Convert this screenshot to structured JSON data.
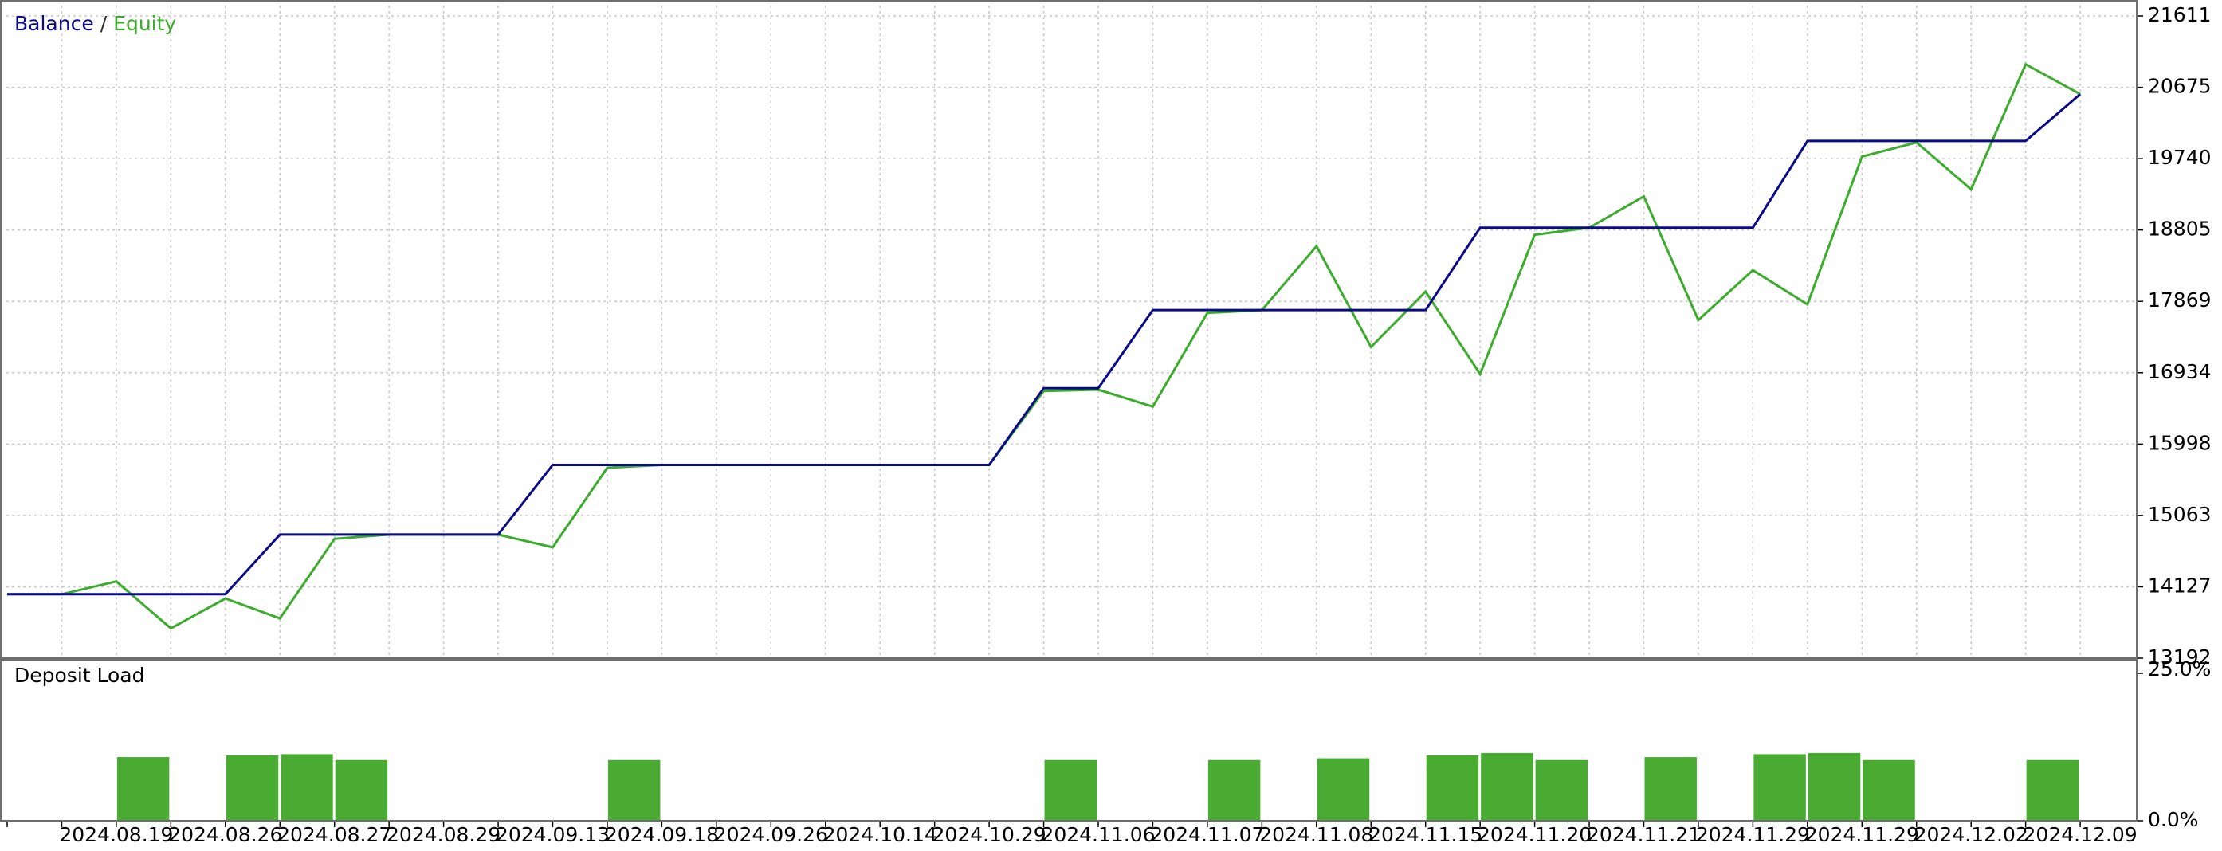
{
  "chart_data": [
    {
      "type": "line",
      "series": [
        {
          "name": "Balance",
          "color": "#0a0a8c",
          "values": [
            14030,
            14030,
            14030,
            14030,
            14030,
            14812,
            14812,
            14812,
            14812,
            14812,
            15725,
            15725,
            15725,
            15725,
            15725,
            15725,
            15725,
            15725,
            15725,
            16731,
            16731,
            17755,
            17755,
            17755,
            17755,
            17755,
            17755,
            18835,
            18835,
            18835,
            18835,
            18835,
            18835,
            19972,
            19972,
            19972,
            19972,
            19972,
            20586
          ]
        },
        {
          "name": "Equity",
          "color": "#3cac2c",
          "values": [
            14030,
            14030,
            14198,
            13583,
            13974,
            13714,
            14756,
            14812,
            14812,
            14812,
            14645,
            15688,
            15725,
            15725,
            15725,
            15725,
            15725,
            15725,
            15725,
            16694,
            16712,
            16489,
            17718,
            17755,
            18593,
            17271,
            17997,
            16917,
            18742,
            18835,
            19245,
            17625,
            18277,
            17830,
            19767,
            19953,
            19338,
            20977,
            20586
          ]
        }
      ],
      "legend_separator": "/",
      "ylim": [
        13192,
        21611
      ],
      "yticks": [
        13192,
        14127,
        15063,
        15998,
        16934,
        17869,
        18805,
        19740,
        20675,
        21611
      ],
      "grid": true
    },
    {
      "type": "bar",
      "title": "Deposit Load",
      "categories": [
        null,
        null,
        "2024.08.19",
        null,
        "2024.08.26",
        null,
        "2024.08.27",
        null,
        "2024.08.29",
        null,
        "2024.09.13",
        null,
        "2024.09.18",
        null,
        "2024.09.26",
        null,
        "2024.10.14",
        null,
        "2024.10.29",
        null,
        "2024.11.06",
        null,
        "2024.11.07",
        null,
        "2024.11.08",
        null,
        "2024.11.15",
        null,
        "2024.11.20",
        null,
        "2024.11.21",
        null,
        "2024.11.29",
        null,
        "2024.11.29",
        null,
        "2024.12.02",
        null,
        "2024.12.09"
      ],
      "values": [
        null,
        null,
        10.8,
        null,
        11.1,
        11.3,
        10.3,
        null,
        null,
        null,
        null,
        10.3,
        null,
        null,
        null,
        null,
        null,
        null,
        null,
        10.3,
        null,
        null,
        10.3,
        null,
        10.6,
        null,
        11.1,
        11.5,
        10.3,
        null,
        10.8,
        null,
        11.3,
        11.5,
        10.3,
        null,
        null,
        10.3,
        null
      ],
      "color": "#4aab33",
      "ylim": [
        0,
        25
      ],
      "yticks": [
        {
          "value": 0,
          "label": "0.0%"
        },
        {
          "value": 25,
          "label": "25.0%"
        }
      ]
    }
  ]
}
